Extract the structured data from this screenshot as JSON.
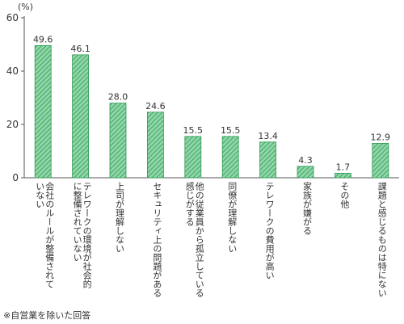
{
  "chart_data": {
    "type": "bar",
    "unit_label": "(%)",
    "ylim": [
      0,
      60
    ],
    "yticks": [
      0,
      20,
      40,
      60
    ],
    "grid": false,
    "bar_color": "#8fd6a8",
    "bar_hatch_color": "#2e9a52",
    "categories": [
      [
        "会社のルールが整備されて",
        "いない"
      ],
      [
        "テレワークの環境が社会的",
        "に整備されていない"
      ],
      [
        "上司が理解しない"
      ],
      [
        "セキュリティ上の問題がある"
      ],
      [
        "他の従業員から孤立している",
        "感じがする"
      ],
      [
        "同僚が理解しない"
      ],
      [
        "テレワークの費用が高い"
      ],
      [
        "家族が嫌がる"
      ],
      [
        "その他"
      ],
      [
        "課題と感じるものは特にない"
      ]
    ],
    "values": [
      49.6,
      46.1,
      28.0,
      24.6,
      15.5,
      15.5,
      13.4,
      4.3,
      1.7,
      12.9
    ],
    "value_labels": [
      "49.6",
      "46.1",
      "28.0",
      "24.6",
      "15.5",
      "15.5",
      "13.4",
      "4.3",
      "1.7",
      "12.9"
    ]
  },
  "footnote": "※自営業を除いた回答"
}
